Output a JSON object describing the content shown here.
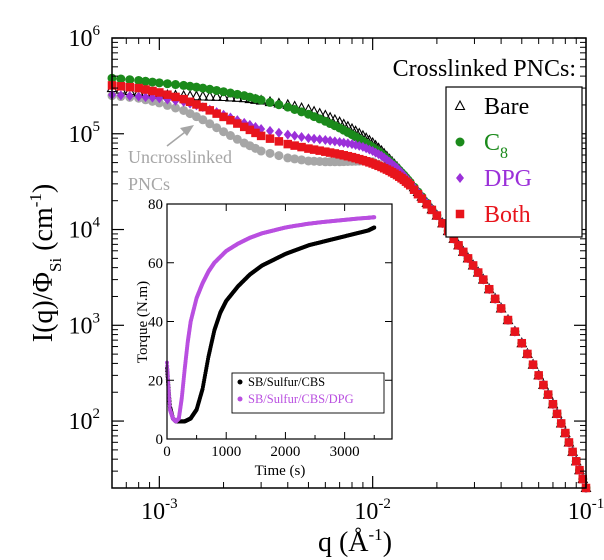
{
  "chart_data": [
    {
      "type": "scatter",
      "xscale": "log",
      "yscale": "log",
      "xlim": [
        0.0006,
        0.1
      ],
      "ylim": [
        20,
        1000000
      ],
      "xlabel": "q (Å⁻¹)",
      "ylabel": "I(q)/Φ_Si (cm⁻¹)",
      "x_ticks": [
        {
          "value": 0.001,
          "base": "10",
          "exp": "-3"
        },
        {
          "value": 0.01,
          "base": "10",
          "exp": "-2"
        },
        {
          "value": 0.1,
          "base": "10",
          "exp": "-1"
        }
      ],
      "y_ticks": [
        {
          "value": 100,
          "base": "10",
          "exp": "2"
        },
        {
          "value": 1000,
          "base": "10",
          "exp": "3"
        },
        {
          "value": 10000,
          "base": "10",
          "exp": "4"
        },
        {
          "value": 100000,
          "base": "10",
          "exp": "5"
        },
        {
          "value": 1000000,
          "base": "10",
          "exp": "6"
        }
      ],
      "legend_title": "Crosslinked PNCs:",
      "legend_placement": "top-right",
      "annotation": {
        "line1": "Uncrosslinked",
        "line2": "PNCs",
        "color": "#a6a6a6"
      },
      "series": [
        {
          "name": "Uncrosslinked",
          "marker": "circle",
          "color": "#a6a6a6",
          "x": [
            0.0006,
            0.0008,
            0.001,
            0.0013,
            0.0016,
            0.002,
            0.0025,
            0.003,
            0.004,
            0.005,
            0.006,
            0.007,
            0.008,
            0.009,
            0.01,
            0.012
          ],
          "y": [
            250000,
            235000,
            210000,
            175000,
            140000,
            105000,
            80000,
            66000,
            56000,
            52000,
            51000,
            51000,
            51500,
            52000,
            51000,
            43000
          ]
        },
        {
          "name": "Bare",
          "marker": "triangle",
          "color": "#000000",
          "x": [
            0.0006,
            0.0008,
            0.001,
            0.0013,
            0.0016,
            0.002,
            0.0025,
            0.003,
            0.004,
            0.005,
            0.006,
            0.007,
            0.008,
            0.009,
            0.01,
            0.011,
            0.012,
            0.013,
            0.014,
            0.015,
            0.017,
            0.02,
            0.024,
            0.028,
            0.033,
            0.04,
            0.05,
            0.06,
            0.07,
            0.08,
            0.09,
            0.1
          ],
          "y": [
            300000,
            270000,
            255000,
            248000,
            245000,
            242000,
            235000,
            222000,
            200000,
            178000,
            155000,
            132000,
            112000,
            95000,
            80000,
            66000,
            54000,
            45000,
            37000,
            31000,
            22000,
            14000,
            8000,
            5000,
            3000,
            1500,
            650,
            300,
            150,
            75,
            38,
            20
          ]
        },
        {
          "name": "C_8",
          "marker": "circle",
          "color": "#1b8a1b",
          "x": [
            0.0006,
            0.0008,
            0.001,
            0.0013,
            0.0016,
            0.002,
            0.0025,
            0.003,
            0.004,
            0.005,
            0.006,
            0.007,
            0.008,
            0.009,
            0.01,
            0.011,
            0.012,
            0.013,
            0.014,
            0.015,
            0.017,
            0.02,
            0.024,
            0.028,
            0.033,
            0.04,
            0.05,
            0.06,
            0.07,
            0.08,
            0.09,
            0.1
          ],
          "y": [
            380000,
            360000,
            340000,
            320000,
            300000,
            275000,
            250000,
            225000,
            190000,
            160000,
            135000,
            115000,
            98000,
            84000,
            72000,
            62000,
            52000,
            44000,
            37000,
            31000,
            22000,
            14000,
            8000,
            5000,
            3000,
            1500,
            650,
            300,
            150,
            75,
            38,
            20
          ]
        },
        {
          "name": "DPG",
          "marker": "diamond",
          "color": "#9b30d9",
          "x": [
            0.0006,
            0.0008,
            0.001,
            0.0013,
            0.0016,
            0.002,
            0.0025,
            0.003,
            0.004,
            0.005,
            0.006,
            0.007,
            0.008,
            0.009,
            0.01,
            0.011,
            0.012,
            0.013,
            0.014,
            0.015,
            0.017,
            0.02,
            0.024,
            0.028,
            0.033,
            0.04,
            0.05,
            0.06,
            0.07,
            0.08,
            0.09,
            0.1
          ],
          "y": [
            255000,
            245000,
            235000,
            215000,
            190000,
            158000,
            130000,
            112000,
            98000,
            90000,
            86000,
            82000,
            78000,
            73000,
            66000,
            59000,
            51000,
            44000,
            37000,
            31000,
            22000,
            14000,
            8000,
            5000,
            3000,
            1500,
            650,
            300,
            150,
            75,
            38,
            20
          ]
        },
        {
          "name": "Both",
          "marker": "square",
          "color": "#e8141c",
          "x": [
            0.0006,
            0.0008,
            0.001,
            0.0013,
            0.0016,
            0.002,
            0.0025,
            0.003,
            0.004,
            0.005,
            0.006,
            0.007,
            0.008,
            0.009,
            0.01,
            0.011,
            0.012,
            0.013,
            0.014,
            0.015,
            0.017,
            0.02,
            0.024,
            0.028,
            0.033,
            0.04,
            0.05,
            0.06,
            0.07,
            0.08,
            0.09,
            0.1
          ],
          "y": [
            320000,
            300000,
            270000,
            230000,
            190000,
            150000,
            118000,
            95000,
            78000,
            70000,
            65000,
            61000,
            57000,
            53000,
            49000,
            45000,
            41000,
            37000,
            33000,
            29000,
            21000,
            14000,
            8000,
            5000,
            3000,
            1500,
            650,
            300,
            150,
            75,
            38,
            20
          ]
        }
      ]
    },
    {
      "type": "scatter",
      "inset": true,
      "xlim": [
        0,
        3800
      ],
      "ylim": [
        0,
        80
      ],
      "xlabel": "Time (s)",
      "ylabel": "Torque (N.m)",
      "x_ticks": [
        0,
        1000,
        2000,
        3000
      ],
      "y_ticks": [
        0,
        20,
        40,
        60,
        80
      ],
      "legend_placement": "bottom-right",
      "series": [
        {
          "name": "SB/Sulfur/CBS",
          "color": "#000000",
          "x": [
            0,
            50,
            100,
            150,
            200,
            300,
            400,
            500,
            600,
            700,
            800,
            900,
            1000,
            1200,
            1400,
            1600,
            1800,
            2000,
            2200,
            2400,
            2600,
            2800,
            3000,
            3200,
            3400,
            3500
          ],
          "y": [
            24,
            11,
            7,
            6,
            6,
            6,
            7,
            10,
            17,
            28,
            37,
            43,
            47,
            52,
            56,
            59,
            61,
            63,
            64.5,
            66,
            67,
            68,
            69,
            70,
            71,
            72
          ]
        },
        {
          "name": "SB/Sulfur/CBS/DPG",
          "color": "#b94fe0",
          "x": [
            0,
            50,
            100,
            150,
            200,
            250,
            300,
            350,
            400,
            500,
            600,
            700,
            800,
            1000,
            1200,
            1400,
            1600,
            1800,
            2000,
            2200,
            2400,
            2600,
            2800,
            3000,
            3200,
            3400,
            3500
          ],
          "y": [
            26,
            10,
            7,
            6,
            7,
            14,
            24,
            33,
            40,
            48,
            53,
            57,
            60,
            64,
            66.5,
            68.5,
            70,
            71,
            72,
            72.7,
            73.3,
            73.8,
            74.2,
            74.6,
            75,
            75.3,
            75.5
          ]
        }
      ]
    }
  ]
}
